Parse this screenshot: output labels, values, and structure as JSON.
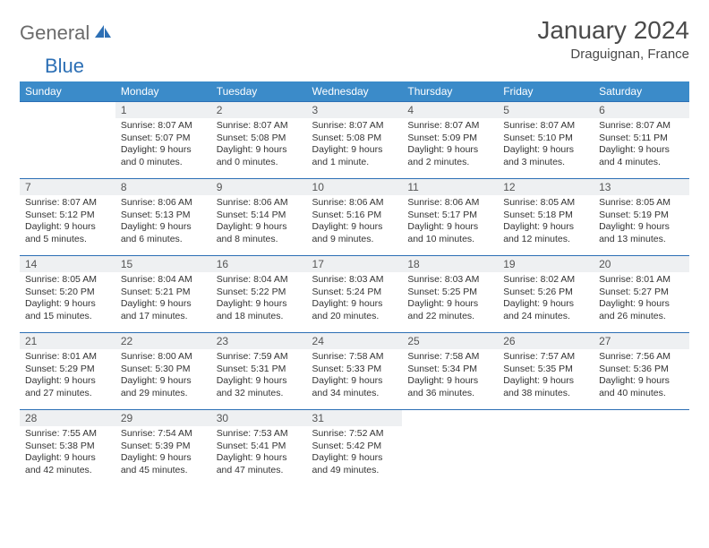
{
  "logo": {
    "part1": "General",
    "part2": "Blue"
  },
  "title": "January 2024",
  "location": "Draguignan, France",
  "colors": {
    "header_bg": "#3b8bc9",
    "header_text": "#ffffff",
    "daynum_bg": "#eef0f2",
    "rule": "#2c6fb5",
    "logo_gray": "#6b6b6b",
    "logo_blue": "#2c6fb5"
  },
  "weekdays": [
    "Sunday",
    "Monday",
    "Tuesday",
    "Wednesday",
    "Thursday",
    "Friday",
    "Saturday"
  ],
  "weeks": [
    [
      {
        "empty": true
      },
      {
        "n": "1",
        "sr": "8:07 AM",
        "ss": "5:07 PM",
        "dl": "9 hours and 0 minutes."
      },
      {
        "n": "2",
        "sr": "8:07 AM",
        "ss": "5:08 PM",
        "dl": "9 hours and 0 minutes."
      },
      {
        "n": "3",
        "sr": "8:07 AM",
        "ss": "5:08 PM",
        "dl": "9 hours and 1 minute."
      },
      {
        "n": "4",
        "sr": "8:07 AM",
        "ss": "5:09 PM",
        "dl": "9 hours and 2 minutes."
      },
      {
        "n": "5",
        "sr": "8:07 AM",
        "ss": "5:10 PM",
        "dl": "9 hours and 3 minutes."
      },
      {
        "n": "6",
        "sr": "8:07 AM",
        "ss": "5:11 PM",
        "dl": "9 hours and 4 minutes."
      }
    ],
    [
      {
        "n": "7",
        "sr": "8:07 AM",
        "ss": "5:12 PM",
        "dl": "9 hours and 5 minutes."
      },
      {
        "n": "8",
        "sr": "8:06 AM",
        "ss": "5:13 PM",
        "dl": "9 hours and 6 minutes."
      },
      {
        "n": "9",
        "sr": "8:06 AM",
        "ss": "5:14 PM",
        "dl": "9 hours and 8 minutes."
      },
      {
        "n": "10",
        "sr": "8:06 AM",
        "ss": "5:16 PM",
        "dl": "9 hours and 9 minutes."
      },
      {
        "n": "11",
        "sr": "8:06 AM",
        "ss": "5:17 PM",
        "dl": "9 hours and 10 minutes."
      },
      {
        "n": "12",
        "sr": "8:05 AM",
        "ss": "5:18 PM",
        "dl": "9 hours and 12 minutes."
      },
      {
        "n": "13",
        "sr": "8:05 AM",
        "ss": "5:19 PM",
        "dl": "9 hours and 13 minutes."
      }
    ],
    [
      {
        "n": "14",
        "sr": "8:05 AM",
        "ss": "5:20 PM",
        "dl": "9 hours and 15 minutes."
      },
      {
        "n": "15",
        "sr": "8:04 AM",
        "ss": "5:21 PM",
        "dl": "9 hours and 17 minutes."
      },
      {
        "n": "16",
        "sr": "8:04 AM",
        "ss": "5:22 PM",
        "dl": "9 hours and 18 minutes."
      },
      {
        "n": "17",
        "sr": "8:03 AM",
        "ss": "5:24 PM",
        "dl": "9 hours and 20 minutes."
      },
      {
        "n": "18",
        "sr": "8:03 AM",
        "ss": "5:25 PM",
        "dl": "9 hours and 22 minutes."
      },
      {
        "n": "19",
        "sr": "8:02 AM",
        "ss": "5:26 PM",
        "dl": "9 hours and 24 minutes."
      },
      {
        "n": "20",
        "sr": "8:01 AM",
        "ss": "5:27 PM",
        "dl": "9 hours and 26 minutes."
      }
    ],
    [
      {
        "n": "21",
        "sr": "8:01 AM",
        "ss": "5:29 PM",
        "dl": "9 hours and 27 minutes."
      },
      {
        "n": "22",
        "sr": "8:00 AM",
        "ss": "5:30 PM",
        "dl": "9 hours and 29 minutes."
      },
      {
        "n": "23",
        "sr": "7:59 AM",
        "ss": "5:31 PM",
        "dl": "9 hours and 32 minutes."
      },
      {
        "n": "24",
        "sr": "7:58 AM",
        "ss": "5:33 PM",
        "dl": "9 hours and 34 minutes."
      },
      {
        "n": "25",
        "sr": "7:58 AM",
        "ss": "5:34 PM",
        "dl": "9 hours and 36 minutes."
      },
      {
        "n": "26",
        "sr": "7:57 AM",
        "ss": "5:35 PM",
        "dl": "9 hours and 38 minutes."
      },
      {
        "n": "27",
        "sr": "7:56 AM",
        "ss": "5:36 PM",
        "dl": "9 hours and 40 minutes."
      }
    ],
    [
      {
        "n": "28",
        "sr": "7:55 AM",
        "ss": "5:38 PM",
        "dl": "9 hours and 42 minutes."
      },
      {
        "n": "29",
        "sr": "7:54 AM",
        "ss": "5:39 PM",
        "dl": "9 hours and 45 minutes."
      },
      {
        "n": "30",
        "sr": "7:53 AM",
        "ss": "5:41 PM",
        "dl": "9 hours and 47 minutes."
      },
      {
        "n": "31",
        "sr": "7:52 AM",
        "ss": "5:42 PM",
        "dl": "9 hours and 49 minutes."
      },
      {
        "empty": true
      },
      {
        "empty": true
      },
      {
        "empty": true
      }
    ]
  ],
  "labels": {
    "sunrise": "Sunrise:",
    "sunset": "Sunset:",
    "daylight": "Daylight:"
  }
}
